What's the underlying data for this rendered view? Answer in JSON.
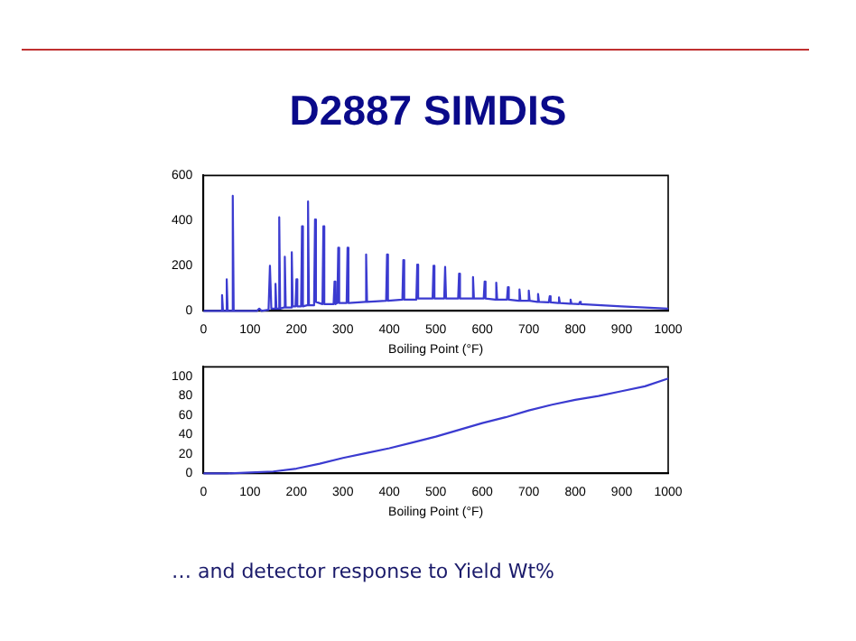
{
  "chart_data": [
    {
      "type": "line",
      "title": "D2887 SIMDIS",
      "xlabel": "Boiling Point (°F)",
      "color": "#3b3bd0",
      "x": [
        0,
        38,
        40,
        42,
        48,
        50,
        52,
        61,
        63,
        65,
        115,
        120,
        125,
        140,
        143,
        146,
        153,
        155,
        157,
        161,
        163,
        165,
        173,
        175,
        177,
        188,
        190,
        192,
        198,
        200,
        202,
        210,
        212,
        214,
        223,
        225,
        227,
        238,
        240,
        242,
        256,
        258,
        260,
        280,
        282,
        284,
        288,
        290,
        292,
        308,
        310,
        312,
        348,
        350,
        352,
        393,
        395,
        397,
        428,
        430,
        432,
        458,
        460,
        462,
        493,
        495,
        497,
        518,
        520,
        522,
        548,
        550,
        552,
        578,
        580,
        582,
        603,
        605,
        607,
        628,
        630,
        632,
        653,
        655,
        657,
        678,
        680,
        682,
        698,
        700,
        702,
        718,
        720,
        722,
        743,
        745,
        747,
        763,
        765,
        767,
        788,
        790,
        792,
        808,
        810,
        812,
        900,
        1000
      ],
      "values": [
        0,
        0,
        70,
        0,
        0,
        140,
        0,
        0,
        510,
        0,
        0,
        10,
        0,
        5,
        200,
        10,
        10,
        120,
        10,
        10,
        415,
        10,
        15,
        240,
        15,
        15,
        260,
        20,
        20,
        140,
        20,
        20,
        375,
        20,
        25,
        485,
        25,
        25,
        405,
        40,
        30,
        375,
        30,
        30,
        130,
        30,
        35,
        280,
        35,
        35,
        280,
        35,
        40,
        250,
        40,
        45,
        250,
        45,
        50,
        225,
        50,
        50,
        205,
        55,
        55,
        200,
        55,
        55,
        195,
        55,
        55,
        165,
        55,
        55,
        150,
        55,
        55,
        130,
        55,
        50,
        125,
        50,
        50,
        105,
        50,
        45,
        95,
        45,
        45,
        90,
        45,
        40,
        75,
        40,
        38,
        65,
        38,
        35,
        60,
        35,
        32,
        50,
        32,
        30,
        40,
        30,
        20,
        10
      ],
      "xlim": [
        0,
        1000
      ],
      "xticks": [
        0,
        100,
        200,
        300,
        400,
        500,
        600,
        700,
        800,
        900,
        1000
      ],
      "ylim": [
        0,
        600
      ],
      "yticks": [
        0,
        200,
        400,
        600
      ]
    },
    {
      "type": "line",
      "xlabel": "Boiling Point (°F)",
      "color": "#3b3bd0",
      "x": [
        0,
        50,
        100,
        150,
        200,
        250,
        300,
        350,
        400,
        450,
        500,
        550,
        600,
        650,
        700,
        750,
        800,
        850,
        900,
        950,
        1000
      ],
      "values": [
        0,
        0,
        1,
        2,
        5,
        10,
        16,
        21,
        26,
        32,
        38,
        45,
        52,
        58,
        65,
        71,
        76,
        80,
        85,
        90,
        98
      ],
      "xlim": [
        0,
        1000
      ],
      "xticks": [
        0,
        100,
        200,
        300,
        400,
        500,
        600,
        700,
        800,
        900,
        1000
      ],
      "ylim": [
        0,
        110
      ],
      "yticks": [
        0,
        20,
        40,
        60,
        80,
        100
      ],
      "annotations": [
        "… and detector response to Yield  Wt%"
      ]
    }
  ]
}
